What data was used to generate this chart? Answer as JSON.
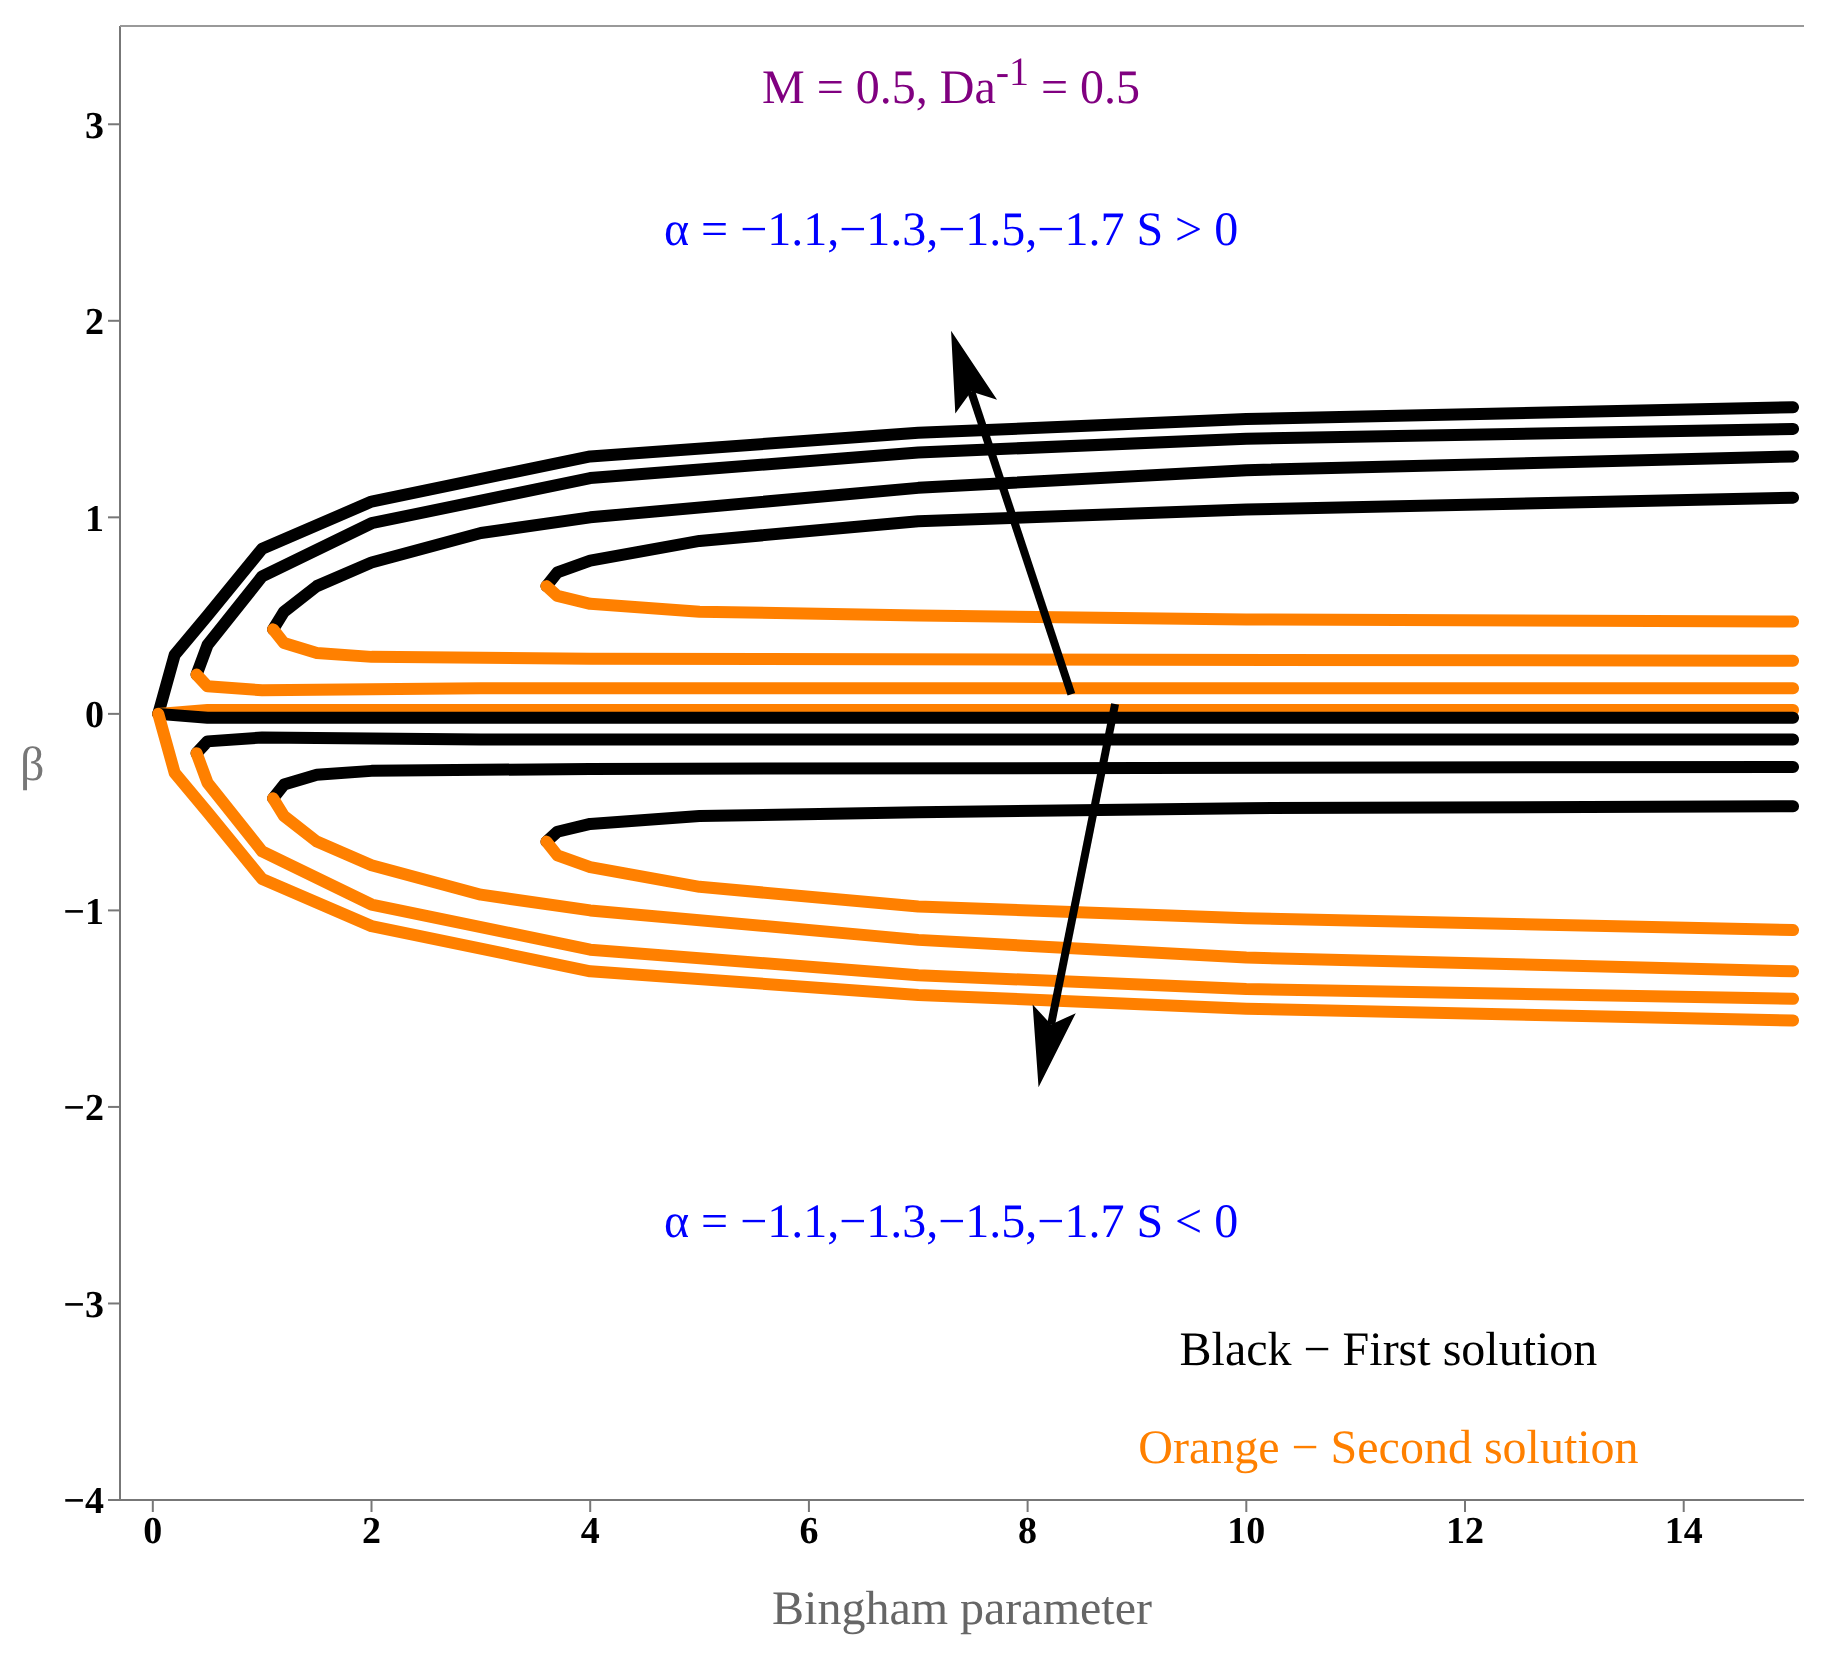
{
  "chart_data": {
    "type": "line",
    "xlabel": "Bingham parameter",
    "ylabel": "β",
    "xlim": [
      -0.3,
      15.1
    ],
    "ylim": [
      -4,
      3.5
    ],
    "xticks": [
      0,
      2,
      4,
      6,
      8,
      10,
      12,
      14
    ],
    "yticks": [
      -4,
      -3,
      -2,
      -1,
      0,
      1,
      2,
      3
    ],
    "grid": false,
    "legend": false,
    "marker": "none",
    "line_style": "solid",
    "annotations": [
      "M = 0.5, Da$^{-1}$ = 0.5",
      "α = −1.1,−1.3,−1.5,−1.7    S > 0",
      "α = −1.1,−1.3,−1.5,−1.7    S < 0",
      "Black − First solution",
      "Orange − Second solution"
    ],
    "series": [
      {
        "color": "#000000",
        "x": [
          0.05,
          0.2,
          0.5,
          1,
          2,
          4,
          7,
          10,
          15
        ],
        "values": [
          0,
          0.3,
          0.5,
          0.84,
          1.08,
          1.31,
          1.43,
          1.5,
          1.56
        ]
      },
      {
        "color": "#ff8000",
        "x": [
          0.05,
          0.5,
          15
        ],
        "values": [
          0,
          0.02,
          0.02
        ]
      },
      {
        "color": "#000000",
        "x": [
          0.05,
          0.5,
          15
        ],
        "values": [
          0,
          -0.02,
          -0.02
        ]
      },
      {
        "color": "#ff8000",
        "x": [
          0.05,
          0.2,
          0.5,
          1,
          2,
          4,
          7,
          10,
          15
        ],
        "values": [
          0,
          -0.3,
          -0.5,
          -0.84,
          -1.08,
          -1.31,
          -1.43,
          -1.5,
          -1.56
        ]
      },
      {
        "color": "#000000",
        "x": [
          0.4,
          0.5,
          1,
          2,
          4,
          7,
          10,
          15
        ],
        "values": [
          0.2,
          0.35,
          0.7,
          0.97,
          1.2,
          1.33,
          1.4,
          1.45
        ]
      },
      {
        "color": "#ff8000",
        "x": [
          0.4,
          0.5,
          1,
          3,
          15
        ],
        "values": [
          0.2,
          0.14,
          0.12,
          0.13,
          0.13
        ]
      },
      {
        "color": "#000000",
        "x": [
          0.4,
          0.5,
          1,
          3,
          15
        ],
        "values": [
          -0.2,
          -0.14,
          -0.12,
          -0.13,
          -0.13
        ]
      },
      {
        "color": "#ff8000",
        "x": [
          0.4,
          0.5,
          1,
          2,
          4,
          7,
          10,
          15
        ],
        "values": [
          -0.2,
          -0.35,
          -0.7,
          -0.97,
          -1.2,
          -1.33,
          -1.4,
          -1.45
        ]
      },
      {
        "color": "#000000",
        "x": [
          1.1,
          1.2,
          1.5,
          2,
          3,
          4,
          7,
          10,
          15
        ],
        "values": [
          0.43,
          0.52,
          0.65,
          0.77,
          0.92,
          1,
          1.15,
          1.24,
          1.31
        ]
      },
      {
        "color": "#ff8000",
        "x": [
          1.1,
          1.2,
          1.5,
          2,
          4,
          15
        ],
        "values": [
          0.43,
          0.36,
          0.31,
          0.29,
          0.28,
          0.27
        ]
      },
      {
        "color": "#000000",
        "x": [
          1.1,
          1.2,
          1.5,
          2,
          4,
          15
        ],
        "values": [
          -0.43,
          -0.36,
          -0.31,
          -0.29,
          -0.28,
          -0.27
        ]
      },
      {
        "color": "#ff8000",
        "x": [
          1.1,
          1.2,
          1.5,
          2,
          3,
          4,
          7,
          10,
          15
        ],
        "values": [
          -0.43,
          -0.52,
          -0.65,
          -0.77,
          -0.92,
          -1,
          -1.15,
          -1.24,
          -1.31
        ]
      },
      {
        "color": "#000000",
        "x": [
          3.6,
          3.7,
          4,
          5,
          7,
          10,
          15
        ],
        "values": [
          0.65,
          0.72,
          0.78,
          0.88,
          0.98,
          1.04,
          1.1
        ]
      },
      {
        "color": "#ff8000",
        "x": [
          3.6,
          3.7,
          4,
          5,
          7,
          10,
          15
        ],
        "values": [
          0.65,
          0.6,
          0.56,
          0.52,
          0.5,
          0.48,
          0.47
        ]
      },
      {
        "color": "#000000",
        "x": [
          3.6,
          3.7,
          4,
          5,
          7,
          10,
          15
        ],
        "values": [
          -0.65,
          -0.6,
          -0.56,
          -0.52,
          -0.5,
          -0.48,
          -0.47
        ]
      },
      {
        "color": "#ff8000",
        "x": [
          3.6,
          3.7,
          4,
          5,
          7,
          10,
          15
        ],
        "values": [
          -0.65,
          -0.72,
          -0.78,
          -0.88,
          -0.98,
          -1.04,
          -1.1
        ]
      }
    ]
  }
}
